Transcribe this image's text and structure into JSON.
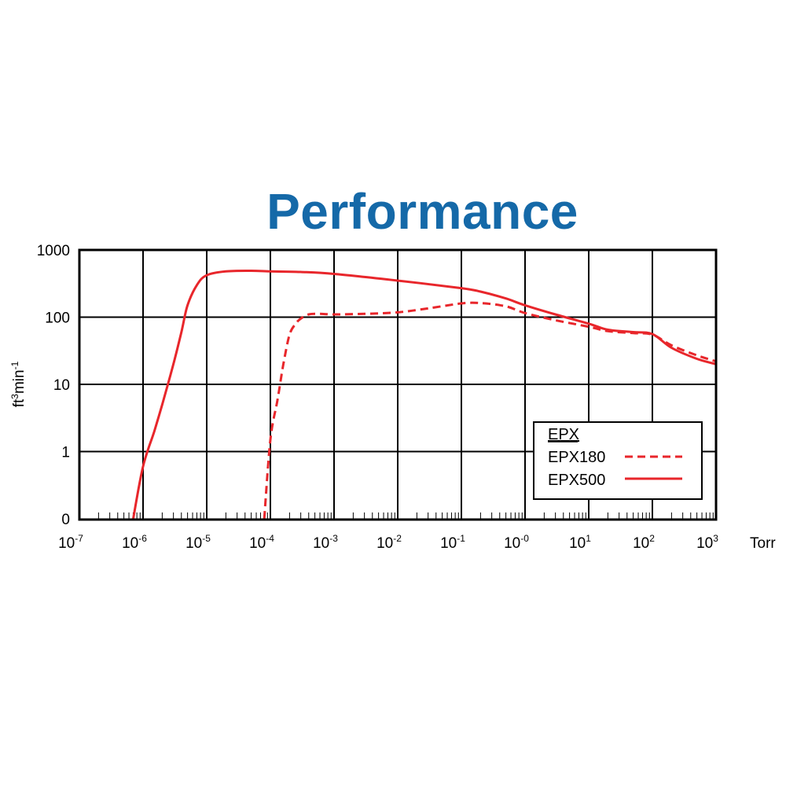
{
  "chart_data": {
    "type": "line",
    "title": "Performance",
    "ylabel_base": "ft",
    "ylabel_sup1": "3",
    "ylabel_mid": "min",
    "ylabel_sup2": "-1",
    "x_unit_label": "Torr",
    "x_scale": "log",
    "xlim": [
      1e-07,
      1000
    ],
    "y_scale": "log-with-zero-baseline",
    "ylim": [
      0,
      1000
    ],
    "grid": true,
    "x_ticks": [
      {
        "base": "10",
        "exp": "-7",
        "value": 1e-07
      },
      {
        "base": "10",
        "exp": "-6",
        "value": 1e-06
      },
      {
        "base": "10",
        "exp": "-5",
        "value": 1e-05
      },
      {
        "base": "10",
        "exp": "-4",
        "value": 0.0001
      },
      {
        "base": "10",
        "exp": "-3",
        "value": 0.001
      },
      {
        "base": "10",
        "exp": "-2",
        "value": 0.01
      },
      {
        "base": "10",
        "exp": "-1",
        "value": 0.1
      },
      {
        "base": "10",
        "exp": "-0",
        "value": 1
      },
      {
        "base": "10",
        "exp": "1",
        "value": 10
      },
      {
        "base": "10",
        "exp": "2",
        "value": 100
      },
      {
        "base": "10",
        "exp": "3",
        "value": 1000
      }
    ],
    "y_ticks": [
      {
        "label": "1000",
        "value": 1000
      },
      {
        "label": "100",
        "value": 100
      },
      {
        "label": "10",
        "value": 10
      },
      {
        "label": "1",
        "value": 1
      },
      {
        "label": "0",
        "value": 0
      }
    ],
    "legend": {
      "position": "bottom-right",
      "heading": "EPX",
      "entries": [
        {
          "name": "EPX180",
          "style": "dashed"
        },
        {
          "name": "EPX500",
          "style": "solid"
        }
      ]
    },
    "series": [
      {
        "name": "EPX500",
        "style": "solid",
        "color": "#e8262b",
        "x": [
          7e-07,
          1e-06,
          1.5e-06,
          2e-06,
          3e-06,
          4e-06,
          5e-06,
          7e-06,
          1e-05,
          2e-05,
          5e-05,
          0.0001,
          0.0003,
          0.001,
          0.01,
          0.1,
          0.2,
          0.5,
          1,
          3,
          10,
          20,
          50,
          100,
          200,
          500,
          1000
        ],
        "y": [
          0,
          0.6,
          2,
          5,
          20,
          60,
          150,
          300,
          420,
          480,
          490,
          480,
          470,
          440,
          350,
          270,
          240,
          190,
          150,
          110,
          80,
          65,
          60,
          56,
          35,
          24,
          20
        ]
      },
      {
        "name": "EPX180",
        "style": "dashed",
        "color": "#e8262b",
        "x": [
          8e-05,
          0.0001,
          0.00013,
          0.00016,
          0.0002,
          0.00025,
          0.0003,
          0.0004,
          0.0006,
          0.001,
          0.003,
          0.01,
          0.03,
          0.1,
          0.2,
          0.5,
          1,
          3,
          10,
          20,
          50,
          100,
          200,
          500,
          1000
        ],
        "y": [
          0,
          1.5,
          6,
          20,
          55,
          80,
          95,
          110,
          112,
          110,
          112,
          118,
          135,
          160,
          162,
          145,
          115,
          90,
          72,
          62,
          58,
          55,
          38,
          27,
          22
        ]
      }
    ]
  }
}
